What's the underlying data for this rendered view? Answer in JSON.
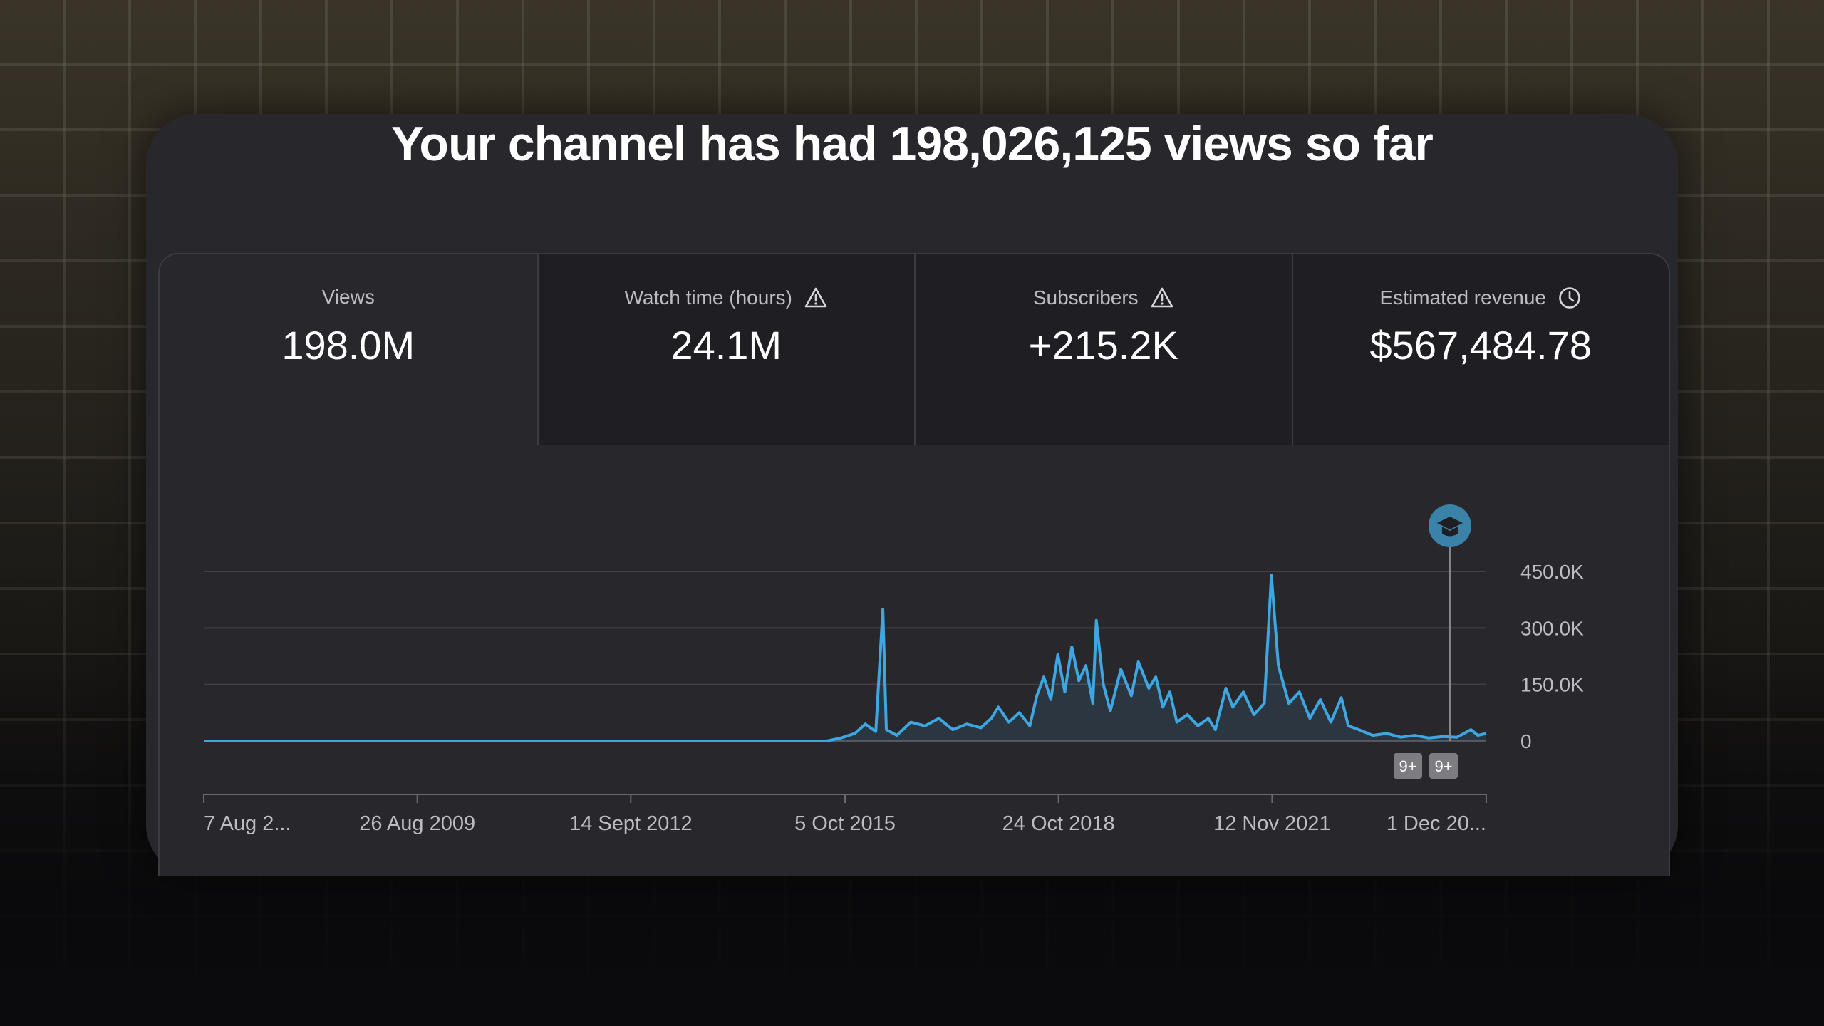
{
  "headline": "Your channel has had 198,026,125 views so far",
  "metrics": [
    {
      "label": "Views",
      "value": "198.0M",
      "icon": null
    },
    {
      "label": "Watch time (hours)",
      "value": "24.1M",
      "icon": "warning-triangle-icon"
    },
    {
      "label": "Subscribers",
      "value": "+215.2K",
      "icon": "warning-triangle-icon"
    },
    {
      "label": "Estimated revenue",
      "value": "$567,484.78",
      "icon": "clock-icon"
    }
  ],
  "badges": [
    "9+",
    "9+"
  ],
  "chart_data": {
    "type": "line",
    "title": "",
    "xlabel": "",
    "ylabel": "",
    "ylim": [
      0,
      450000
    ],
    "y_ticks": [
      {
        "value": 450000,
        "label": "450.0K"
      },
      {
        "value": 300000,
        "label": "300.0K"
      },
      {
        "value": 150000,
        "label": "150.0K"
      },
      {
        "value": 0,
        "label": "0"
      }
    ],
    "x_ticks": [
      {
        "value": 2006.6,
        "label": "7 Aug 2..."
      },
      {
        "value": 2009.65,
        "label": "26 Aug 2009"
      },
      {
        "value": 2012.7,
        "label": "14 Sept 2012"
      },
      {
        "value": 2015.76,
        "label": "5 Oct 2015"
      },
      {
        "value": 2018.81,
        "label": "24 Oct 2018"
      },
      {
        "value": 2021.86,
        "label": "12 Nov 2021"
      },
      {
        "value": 2024.92,
        "label": "1 Dec 20..."
      }
    ],
    "xlim": [
      2006.6,
      2024.92
    ],
    "marker_x": 2024.4,
    "series": [
      {
        "name": "Views",
        "color": "#3ea6e0",
        "points": [
          [
            2006.6,
            0
          ],
          [
            2015.5,
            0
          ],
          [
            2015.7,
            8000
          ],
          [
            2015.9,
            20000
          ],
          [
            2016.05,
            45000
          ],
          [
            2016.2,
            25000
          ],
          [
            2016.3,
            350000
          ],
          [
            2016.35,
            30000
          ],
          [
            2016.5,
            15000
          ],
          [
            2016.7,
            50000
          ],
          [
            2016.9,
            40000
          ],
          [
            2017.1,
            60000
          ],
          [
            2017.3,
            30000
          ],
          [
            2017.5,
            45000
          ],
          [
            2017.7,
            35000
          ],
          [
            2017.85,
            60000
          ],
          [
            2017.95,
            90000
          ],
          [
            2018.1,
            50000
          ],
          [
            2018.25,
            75000
          ],
          [
            2018.4,
            40000
          ],
          [
            2018.5,
            120000
          ],
          [
            2018.6,
            170000
          ],
          [
            2018.7,
            110000
          ],
          [
            2018.8,
            230000
          ],
          [
            2018.9,
            130000
          ],
          [
            2019.0,
            250000
          ],
          [
            2019.1,
            160000
          ],
          [
            2019.2,
            200000
          ],
          [
            2019.3,
            100000
          ],
          [
            2019.35,
            320000
          ],
          [
            2019.45,
            150000
          ],
          [
            2019.55,
            80000
          ],
          [
            2019.7,
            190000
          ],
          [
            2019.85,
            120000
          ],
          [
            2019.95,
            210000
          ],
          [
            2020.1,
            140000
          ],
          [
            2020.2,
            170000
          ],
          [
            2020.3,
            90000
          ],
          [
            2020.4,
            130000
          ],
          [
            2020.5,
            50000
          ],
          [
            2020.65,
            70000
          ],
          [
            2020.8,
            40000
          ],
          [
            2020.95,
            60000
          ],
          [
            2021.05,
            30000
          ],
          [
            2021.2,
            140000
          ],
          [
            2021.3,
            90000
          ],
          [
            2021.45,
            130000
          ],
          [
            2021.6,
            70000
          ],
          [
            2021.75,
            100000
          ],
          [
            2021.85,
            440000
          ],
          [
            2021.95,
            200000
          ],
          [
            2022.1,
            100000
          ],
          [
            2022.25,
            130000
          ],
          [
            2022.4,
            60000
          ],
          [
            2022.55,
            110000
          ],
          [
            2022.7,
            50000
          ],
          [
            2022.85,
            115000
          ],
          [
            2022.95,
            40000
          ],
          [
            2023.1,
            30000
          ],
          [
            2023.3,
            15000
          ],
          [
            2023.5,
            20000
          ],
          [
            2023.7,
            10000
          ],
          [
            2023.9,
            15000
          ],
          [
            2024.1,
            8000
          ],
          [
            2024.3,
            12000
          ],
          [
            2024.5,
            10000
          ],
          [
            2024.7,
            30000
          ],
          [
            2024.8,
            15000
          ],
          [
            2024.92,
            20000
          ]
        ]
      }
    ]
  }
}
